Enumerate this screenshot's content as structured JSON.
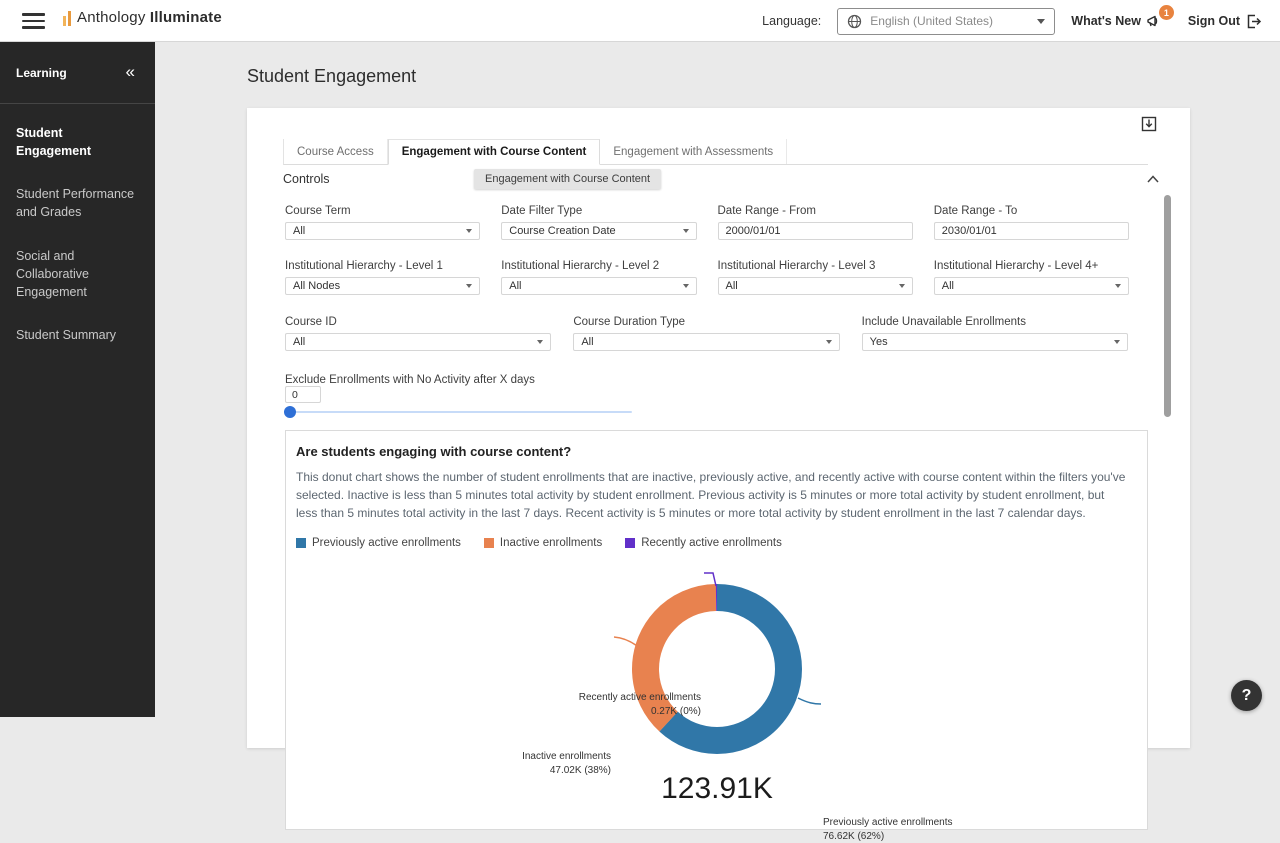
{
  "topbar": {
    "brand_regular": "Anthology",
    "brand_bold": "Illuminate",
    "language_label": "Language:",
    "language_value": "English (United States)",
    "whats_new_label": "What's New",
    "whats_new_badge": "1",
    "sign_out_label": "Sign Out"
  },
  "sidebar": {
    "header": "Learning",
    "collapse_icon": "«",
    "items": [
      {
        "label": "Student Engagement",
        "active": true
      },
      {
        "label": "Student Performance and Grades",
        "active": false
      },
      {
        "label": "Social and Collaborative Engagement",
        "active": false
      },
      {
        "label": "Student Summary",
        "active": false
      }
    ]
  },
  "page": {
    "title": "Student Engagement"
  },
  "tabs": [
    {
      "label": "Course Access",
      "active": false
    },
    {
      "label": "Engagement with Course Content",
      "active": true
    },
    {
      "label": "Engagement with Assessments",
      "active": false
    }
  ],
  "controls": {
    "title": "Controls",
    "tooltip": "Engagement with Course Content",
    "row1": [
      {
        "label": "Course Term",
        "value": "All"
      },
      {
        "label": "Date Filter Type",
        "value": "Course Creation Date"
      },
      {
        "label": "Date Range - From",
        "value": "2000/01/01"
      },
      {
        "label": "Date Range - To",
        "value": "2030/01/01"
      }
    ],
    "row2": [
      {
        "label": "Institutional Hierarchy - Level 1",
        "value": "All Nodes"
      },
      {
        "label": "Institutional Hierarchy - Level 2",
        "value": "All"
      },
      {
        "label": "Institutional Hierarchy - Level 3",
        "value": "All"
      },
      {
        "label": "Institutional Hierarchy - Level 4+",
        "value": "All"
      }
    ],
    "row3": [
      {
        "label": "Course ID",
        "value": "All"
      },
      {
        "label": "Course Duration Type",
        "value": "All"
      },
      {
        "label": "Include Unavailable Enrollments",
        "value": "Yes"
      }
    ],
    "slider": {
      "label": "Exclude Enrollments with No Activity after X days",
      "value": "0"
    }
  },
  "chart_section": {
    "question": "Are students engaging with course content?",
    "description": "This donut chart shows the number of student enrollments that are inactive, previously active, and recently active with course content within the filters you've selected. Inactive is less than 5 minutes total activity by student enrollment. Previous activity is 5 minutes or more total activity by student enrollment, but less than 5 minutes total activity in the last 7 days. Recent activity is 5 minutes or more total activity by student enrollment in the last 7 calendar days."
  },
  "chart_data": {
    "type": "pie",
    "subtype": "donut",
    "title": "Are students engaging with course content?",
    "categories": [
      "Previously active enrollments",
      "Inactive enrollments",
      "Recently active enrollments"
    ],
    "values": [
      76620,
      47020,
      270
    ],
    "value_labels": [
      "76.62K (62%)",
      "47.02K (38%)",
      "0.27K (0%)"
    ],
    "percentages": [
      62,
      38,
      0
    ],
    "center_label": "123.91K",
    "colors": [
      "#3077a8",
      "#e8824f",
      "#6130c9"
    ],
    "start_angle_deg": -90,
    "direction": "clockwise",
    "donut_hole_ratio": 0.68,
    "legend_position": "top-left"
  },
  "help": {
    "label": "?"
  }
}
